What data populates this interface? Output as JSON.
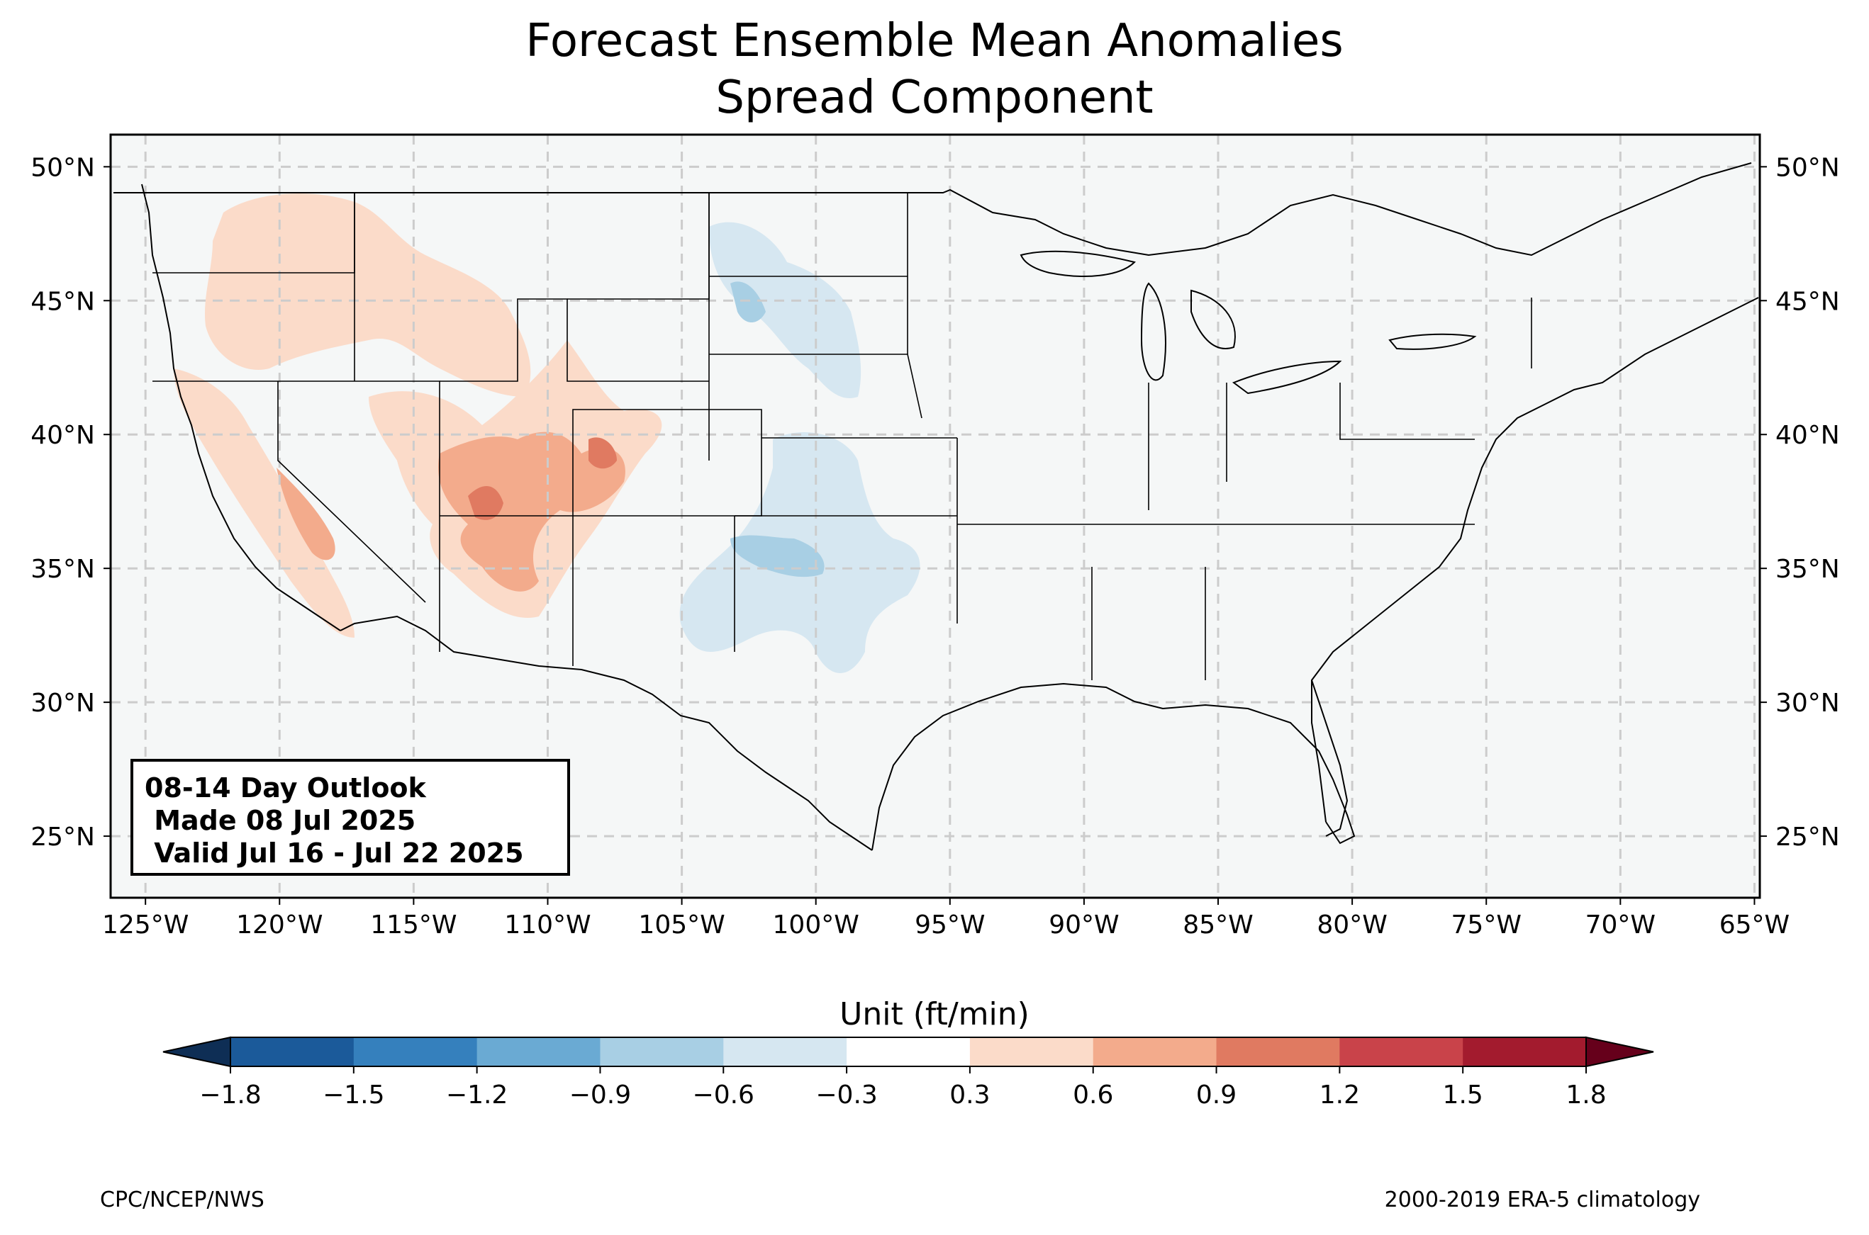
{
  "title": {
    "line1": "Forecast Ensemble Mean Anomalies",
    "line2": "Spread Component"
  },
  "info_box": {
    "line1": "08-14 Day Outlook",
    "line2": " Made 08 Jul 2025",
    "line3": " Valid Jul 16 - Jul 22 2025"
  },
  "map": {
    "longitude_ticks": [
      "125°W",
      "120°W",
      "115°W",
      "110°W",
      "105°W",
      "100°W",
      "95°W",
      "90°W",
      "85°W",
      "80°W",
      "75°W",
      "70°W",
      "65°W"
    ],
    "latitude_ticks": [
      "50°N",
      "45°N",
      "40°N",
      "35°N",
      "30°N",
      "25°N"
    ],
    "extent": {
      "lon": [
        -126.3,
        -64.8
      ],
      "lat": [
        22.7,
        51.2
      ]
    },
    "land_color": "#f5f7f7",
    "gridline_color": "#cccccc",
    "anomaly_regions": [
      {
        "area": "Pacific Northwest / Oregon",
        "level": "0.3 to 0.6"
      },
      {
        "area": "Idaho / Montana",
        "level": "0.3 to 0.6"
      },
      {
        "area": "Northern California",
        "level": "0.3 to 0.6"
      },
      {
        "area": "Sierra Nevada",
        "level": "0.6 to 1.2"
      },
      {
        "area": "Southern Utah / Four Corners",
        "level": "0.6 to 1.2"
      },
      {
        "area": "Western Colorado",
        "level": "0.6 to 1.2"
      },
      {
        "area": "Western Dakotas",
        "level": "-0.3 to -0.9"
      },
      {
        "area": "Kansas / Oklahoma",
        "level": "-0.3 to -0.6"
      },
      {
        "area": "Eastern New Mexico / West Texas",
        "level": "-0.3 to -0.9"
      }
    ]
  },
  "colorbar": {
    "title": "Unit (ft/min)",
    "ticks": [
      "−1.8",
      "−1.5",
      "−1.2",
      "−0.9",
      "−0.6",
      "−0.3",
      "0.3",
      "0.6",
      "0.9",
      "1.2",
      "1.5",
      "1.8"
    ],
    "colors": [
      "#1b5a9a",
      "#3580bd",
      "#6aaad3",
      "#a8cfe4",
      "#d6e7f1",
      "#ffffff",
      "#fbdbc9",
      "#f3ab8c",
      "#e07a61",
      "#c9434a",
      "#a31b2e"
    ],
    "under_color": "#0e2e55",
    "over_color": "#66001b"
  },
  "credits": {
    "left": "CPC/NCEP/NWS",
    "right": "2000-2019 ERA-5 climatology"
  }
}
